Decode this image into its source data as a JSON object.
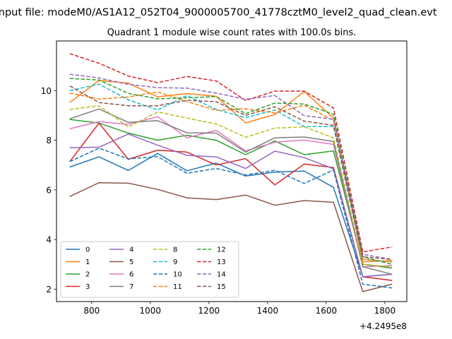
{
  "chart_data": {
    "type": "line",
    "title": "Input file: modeM0/AS1A12_052T04_9000005700_41778cztM0_level2_quad_clean.evt",
    "subtitle": "Quadrant 1 module wise count rates with 100.0s bins.",
    "xlabel": "",
    "ylabel": "",
    "x_offset_label": "+4.2495e8",
    "xlim": [
      680,
      1875
    ],
    "ylim": [
      1.5,
      12.0
    ],
    "x_ticks": [
      800,
      1000,
      1200,
      1400,
      1600,
      1800
    ],
    "y_ticks": [
      2,
      4,
      6,
      8,
      10
    ],
    "grid": false,
    "legend_position": "lower-left",
    "legend_columns": 4,
    "x": [
      725,
      825,
      925,
      1025,
      1125,
      1225,
      1325,
      1425,
      1525,
      1625,
      1725,
      1825
    ],
    "series": [
      {
        "name": "0",
        "color": "#1f77b4",
        "dash": "solid",
        "values": [
          6.92,
          7.33,
          6.78,
          7.47,
          6.77,
          7.08,
          6.56,
          6.72,
          6.76,
          6.1,
          2.5,
          2.6
        ]
      },
      {
        "name": "1",
        "color": "#ff7f0e",
        "dash": "solid",
        "values": [
          9.52,
          10.41,
          10.3,
          9.75,
          9.88,
          9.77,
          8.7,
          9.04,
          9.96,
          8.9,
          3.1,
          3.15
        ]
      },
      {
        "name": "2",
        "color": "#2ca02c",
        "dash": "solid",
        "values": [
          8.84,
          8.69,
          8.29,
          8.0,
          8.2,
          8.0,
          7.42,
          7.97,
          7.42,
          7.57,
          3.0,
          2.85
        ]
      },
      {
        "name": "3",
        "color": "#d62728",
        "dash": "solid",
        "values": [
          7.13,
          8.69,
          7.23,
          7.6,
          7.52,
          7.0,
          7.26,
          6.2,
          7.04,
          6.9,
          2.5,
          2.35
        ]
      },
      {
        "name": "4",
        "color": "#9467bd",
        "dash": "solid",
        "values": [
          7.7,
          7.72,
          8.25,
          7.8,
          7.39,
          7.33,
          6.86,
          7.56,
          7.3,
          6.85,
          2.5,
          2.6
        ]
      },
      {
        "name": "5",
        "color": "#8c564b",
        "dash": "solid",
        "values": [
          5.73,
          6.29,
          6.27,
          6.02,
          5.68,
          5.61,
          5.79,
          5.38,
          5.57,
          5.5,
          1.9,
          2.2
        ]
      },
      {
        "name": "6",
        "color": "#e377c2",
        "dash": "solid",
        "values": [
          8.46,
          8.75,
          8.64,
          8.95,
          8.1,
          8.4,
          7.57,
          7.92,
          8.01,
          7.83,
          2.9,
          2.95
        ]
      },
      {
        "name": "7",
        "color": "#7f7f7f",
        "dash": "solid",
        "values": [
          8.86,
          9.26,
          8.72,
          8.79,
          8.3,
          8.29,
          7.52,
          8.1,
          8.13,
          7.95,
          2.9,
          2.6
        ]
      },
      {
        "name": "8",
        "color": "#bcbd22",
        "dash": "dashed",
        "values": [
          9.24,
          9.39,
          8.53,
          9.14,
          8.89,
          8.66,
          8.12,
          8.49,
          8.54,
          8.1,
          3.0,
          2.9
        ]
      },
      {
        "name": "9",
        "color": "#17becf",
        "dash": "dashed",
        "values": [
          10.0,
          10.26,
          9.63,
          9.22,
          9.8,
          9.24,
          8.91,
          9.22,
          8.55,
          8.55,
          3.2,
          3.1
        ]
      },
      {
        "name": "10",
        "color": "#1f77b4",
        "dash": "dashed",
        "values": [
          7.14,
          7.68,
          7.25,
          7.34,
          6.67,
          6.86,
          6.6,
          6.79,
          6.26,
          6.8,
          2.2,
          2.05
        ]
      },
      {
        "name": "11",
        "color": "#ff7f0e",
        "dash": "dashed",
        "values": [
          9.9,
          9.66,
          9.74,
          9.95,
          9.56,
          9.2,
          9.27,
          9.1,
          9.41,
          8.8,
          3.2,
          3.1
        ]
      },
      {
        "name": "12",
        "color": "#2ca02c",
        "dash": "dashed",
        "values": [
          10.49,
          10.43,
          9.89,
          9.67,
          9.71,
          9.76,
          9.07,
          9.5,
          9.46,
          9.05,
          3.3,
          3.0
        ]
      },
      {
        "name": "13",
        "color": "#d62728",
        "dash": "dashed",
        "values": [
          11.49,
          11.1,
          10.59,
          10.32,
          10.57,
          10.39,
          9.6,
          9.98,
          9.98,
          9.3,
          3.5,
          3.7
        ]
      },
      {
        "name": "14",
        "color": "#9467bd",
        "dash": "dashed",
        "values": [
          10.66,
          10.51,
          10.25,
          10.12,
          10.1,
          9.9,
          9.65,
          9.8,
          8.99,
          8.85,
          3.4,
          3.2
        ]
      },
      {
        "name": "15",
        "color": "#8c564b",
        "dash": "dashed",
        "values": [
          10.19,
          9.52,
          9.39,
          9.39,
          9.61,
          9.55,
          9.0,
          9.35,
          8.77,
          8.6,
          3.3,
          3.2
        ]
      }
    ]
  }
}
